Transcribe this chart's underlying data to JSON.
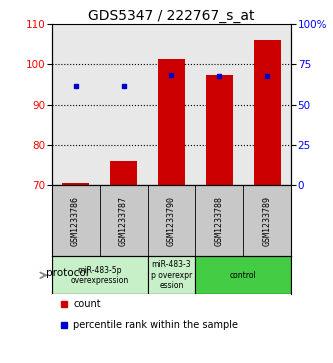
{
  "title": "GDS5347 / 222767_s_at",
  "samples": [
    "GSM1233786",
    "GSM1233787",
    "GSM1233790",
    "GSM1233788",
    "GSM1233789"
  ],
  "bar_values": [
    70.5,
    76.0,
    101.2,
    97.2,
    106.0
  ],
  "bar_bottom": [
    70,
    70,
    70,
    70,
    70
  ],
  "scatter_values": [
    94.5,
    94.5,
    97.2,
    97.0,
    97.0
  ],
  "ylim": [
    70,
    110
  ],
  "yticks_left": [
    70,
    80,
    90,
    100,
    110
  ],
  "yticks_right": [
    0,
    25,
    50,
    75,
    100
  ],
  "bar_color": "#cc0000",
  "scatter_color": "#0000cc",
  "background_color": "#ffffff",
  "plot_bg_color": "#e8e8e8",
  "title_fontsize": 10,
  "tick_fontsize": 7.5,
  "proto_data": [
    {
      "label": "miR-483-5p\noverexpression",
      "xstart": 0,
      "xend": 2,
      "color": "#c8f0c8"
    },
    {
      "label": "miR-483-3\np overexpr\nession",
      "xstart": 2,
      "xend": 3,
      "color": "#c8f0c8"
    },
    {
      "label": "control",
      "xstart": 3,
      "xend": 5,
      "color": "#44cc44"
    }
  ]
}
